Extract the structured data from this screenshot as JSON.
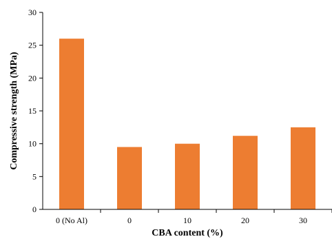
{
  "chart_data": {
    "type": "bar",
    "categories": [
      "0 (No Al)",
      "0",
      "10",
      "20",
      "30"
    ],
    "values": [
      26,
      9.5,
      10,
      11.2,
      12.5
    ],
    "xlabel": "CBA content (%)",
    "ylabel": "Compressive strength (MPa)",
    "ylim": [
      0,
      30
    ],
    "yticks": [
      0,
      5,
      10,
      15,
      20,
      25,
      30
    ],
    "grid": false,
    "bar_color": "#ED7D31"
  }
}
